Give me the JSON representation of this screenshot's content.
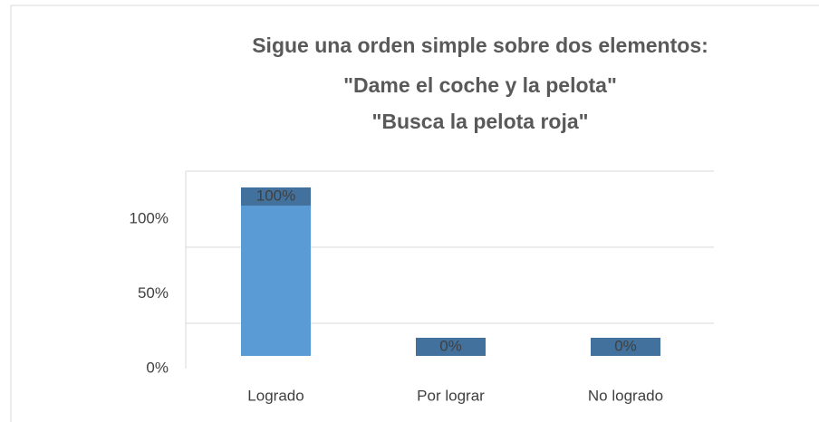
{
  "chart_data": {
    "type": "bar",
    "title": [
      "Sigue una orden simple sobre dos elementos:",
      "\"Dame el coche y la pelota\"",
      "\"Busca la pelota roja\""
    ],
    "categories": [
      "Logrado",
      "Por lograr",
      "No logrado"
    ],
    "values": [
      100,
      0,
      0
    ],
    "value_labels": [
      "100%",
      "0%",
      "0%"
    ],
    "color": "#5b9bd5",
    "cap_color": "#41719c",
    "ylim": [
      0,
      100
    ],
    "yticks": [
      {
        "value": 0,
        "label": "0%"
      },
      {
        "value": 50,
        "label": "50%"
      },
      {
        "value": 100,
        "label": "100%"
      }
    ],
    "grid": true
  }
}
